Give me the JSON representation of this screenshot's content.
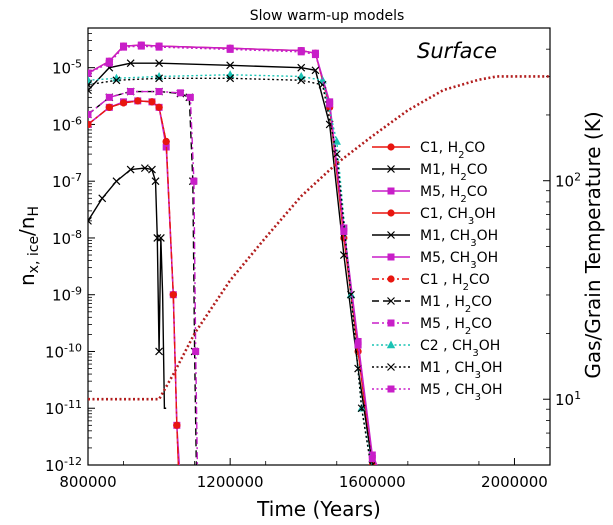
{
  "chart_data": {
    "type": "line",
    "title": "Slow warm-up models",
    "xlabel": "Time (Years)",
    "ylabel_left_base": "n",
    "ylabel_left_sub1": "x, ice",
    "ylabel_left_slash": "/n",
    "ylabel_left_sub2": "H",
    "ylabel_right": "Gas/Grain Temperature (K)",
    "annotation": "Surface",
    "xlim": [
      800000,
      2100000
    ],
    "ylim": [
      1e-12,
      5e-05
    ],
    "yscale": "log",
    "y2lim": [
      5,
      500
    ],
    "y2scale": "log",
    "x_ticks": [
      800000,
      1200000,
      1600000,
      2000000
    ],
    "x_tick_labels": [
      "800000",
      "1200000",
      "1600000",
      "2000000"
    ],
    "y_tick_labels": [
      {
        "base": "10",
        "exp": "-12",
        "value": 1e-12
      },
      {
        "base": "10",
        "exp": "-11",
        "value": 1e-11
      },
      {
        "base": "10",
        "exp": "-10",
        "value": 1e-10
      },
      {
        "base": "10",
        "exp": "-9",
        "value": 1e-09
      },
      {
        "base": "10",
        "exp": "-8",
        "value": 1e-08
      },
      {
        "base": "10",
        "exp": "-7",
        "value": 1e-07
      },
      {
        "base": "10",
        "exp": "-6",
        "value": 1e-06
      },
      {
        "base": "10",
        "exp": "-5",
        "value": 1e-05
      }
    ],
    "y2_tick_labels": [
      {
        "base": "10",
        "exp": "1",
        "value": 10
      },
      {
        "base": "10",
        "exp": "2",
        "value": 100
      }
    ],
    "legend_position": "right",
    "series": [
      {
        "legend_main": "C1, H",
        "legend_sub": "2",
        "legend_tail": "CO",
        "color": "#e8150f",
        "marker": "circle",
        "dash": "solid",
        "points": [
          [
            800000,
            1e-06
          ],
          [
            860000,
            2e-06
          ],
          [
            900000,
            2.4e-06
          ],
          [
            940000,
            2.6e-06
          ],
          [
            980000,
            2.5e-06
          ],
          [
            1000000,
            2e-06
          ],
          [
            1020000,
            5e-07
          ],
          [
            1040000,
            1e-09
          ],
          [
            1050000,
            5e-12
          ],
          [
            1055000,
            8e-13
          ]
        ]
      },
      {
        "legend_main": "M1, H",
        "legend_sub": "2",
        "legend_tail": "CO",
        "color": "#000000",
        "marker": "x",
        "dash": "solid",
        "points": [
          [
            800000,
            2e-08
          ],
          [
            840000,
            5e-08
          ],
          [
            880000,
            1e-07
          ],
          [
            920000,
            1.6e-07
          ],
          [
            960000,
            1.7e-07
          ],
          [
            980000,
            1.6e-07
          ],
          [
            990000,
            1e-07
          ],
          [
            995000,
            1e-08
          ],
          [
            1000000,
            1e-10
          ],
          [
            1005000,
            1e-08
          ],
          [
            1010000,
            1e-09
          ],
          [
            1015000,
            1e-11
          ],
          [
            1020000,
            1e-11
          ]
        ]
      },
      {
        "legend_main": "M5, H",
        "legend_sub": "2",
        "legend_tail": "CO",
        "color": "#c81ec8",
        "marker": "square",
        "dash": "solid",
        "points": [
          [
            800000,
            1e-06
          ],
          [
            860000,
            2e-06
          ],
          [
            900000,
            2.5e-06
          ],
          [
            940000,
            2.6e-06
          ],
          [
            980000,
            2.5e-06
          ],
          [
            1000000,
            2e-06
          ],
          [
            1020000,
            4e-07
          ],
          [
            1040000,
            1e-09
          ],
          [
            1050000,
            5e-12
          ],
          [
            1058000,
            8e-13
          ]
        ]
      },
      {
        "legend_main": "C1, CH",
        "legend_sub": "3",
        "legend_tail": "OH",
        "color": "#e8150f",
        "marker": "circle",
        "dash": "solid",
        "points": [
          [
            800000,
            8e-06
          ],
          [
            860000,
            1.3e-05
          ],
          [
            900000,
            2.4e-05
          ],
          [
            950000,
            2.5e-05
          ],
          [
            1000000,
            2.4e-05
          ],
          [
            1200000,
            2.2e-05
          ],
          [
            1400000,
            2e-05
          ],
          [
            1440000,
            1.8e-05
          ],
          [
            1480000,
            2e-06
          ],
          [
            1520000,
            1e-08
          ],
          [
            1560000,
            1e-10
          ],
          [
            1600000,
            1e-12
          ],
          [
            1615000,
            8e-13
          ]
        ]
      },
      {
        "legend_main": "M1, CH",
        "legend_sub": "3",
        "legend_tail": "OH",
        "color": "#000000",
        "marker": "x",
        "dash": "solid",
        "points": [
          [
            800000,
            4e-06
          ],
          [
            860000,
            1e-05
          ],
          [
            920000,
            1.2e-05
          ],
          [
            1000000,
            1.2e-05
          ],
          [
            1200000,
            1.1e-05
          ],
          [
            1400000,
            1e-05
          ],
          [
            1440000,
            9e-06
          ],
          [
            1480000,
            1e-06
          ],
          [
            1520000,
            5e-09
          ],
          [
            1560000,
            5e-11
          ],
          [
            1600000,
            1e-12
          ],
          [
            1612000,
            8e-13
          ]
        ]
      },
      {
        "legend_main": "M5, CH",
        "legend_sub": "3",
        "legend_tail": "OH",
        "color": "#c81ec8",
        "marker": "square",
        "dash": "solid",
        "points": [
          [
            800000,
            8e-06
          ],
          [
            860000,
            1.3e-05
          ],
          [
            900000,
            2.4e-05
          ],
          [
            950000,
            2.5e-05
          ],
          [
            1000000,
            2.4e-05
          ],
          [
            1200000,
            2.2e-05
          ],
          [
            1400000,
            2e-05
          ],
          [
            1440000,
            1.8e-05
          ],
          [
            1480000,
            2.5e-06
          ],
          [
            1520000,
            1.5e-08
          ],
          [
            1560000,
            1.5e-10
          ],
          [
            1600000,
            1.5e-12
          ],
          [
            1620000,
            8e-13
          ]
        ]
      },
      {
        "legend_main": "C1 , H",
        "legend_sub": "2",
        "legend_tail": "CO",
        "color": "#e8150f",
        "marker": "circle",
        "dash": "dashdot",
        "points": [
          [
            800000,
            1e-06
          ],
          [
            860000,
            2e-06
          ],
          [
            900000,
            2.4e-06
          ],
          [
            940000,
            2.6e-06
          ],
          [
            980000,
            2.5e-06
          ],
          [
            1000000,
            2e-06
          ],
          [
            1020000,
            5e-07
          ],
          [
            1040000,
            1e-09
          ],
          [
            1050000,
            5e-12
          ],
          [
            1055000,
            8e-13
          ]
        ]
      },
      {
        "legend_main": "M1 , H",
        "legend_sub": "2",
        "legend_tail": "CO",
        "color": "#000000",
        "marker": "x",
        "dash": "dashed",
        "points": [
          [
            800000,
            1.5e-06
          ],
          [
            860000,
            3e-06
          ],
          [
            920000,
            3.8e-06
          ],
          [
            1000000,
            3.8e-06
          ],
          [
            1060000,
            3.5e-06
          ],
          [
            1085000,
            3e-06
          ],
          [
            1095000,
            1e-07
          ],
          [
            1100000,
            1e-10
          ],
          [
            1105000,
            8e-13
          ]
        ]
      },
      {
        "legend_main": "M5 , H",
        "legend_sub": "2",
        "legend_tail": "CO",
        "color": "#c81ec8",
        "marker": "square",
        "dash": "dashdot",
        "points": [
          [
            800000,
            1.5e-06
          ],
          [
            860000,
            3e-06
          ],
          [
            920000,
            3.8e-06
          ],
          [
            1000000,
            3.8e-06
          ],
          [
            1060000,
            3.6e-06
          ],
          [
            1088000,
            3e-06
          ],
          [
            1098000,
            1e-07
          ],
          [
            1103000,
            1e-10
          ],
          [
            1108000,
            8e-13
          ]
        ]
      },
      {
        "legend_main": "C2 , CH",
        "legend_sub": "3",
        "legend_tail": "OH",
        "color": "#19c3b4",
        "marker": "triangle",
        "dash": "dotted",
        "points": [
          [
            800000,
            6e-06
          ],
          [
            880000,
            6.5e-06
          ],
          [
            1000000,
            7e-06
          ],
          [
            1200000,
            7.5e-06
          ],
          [
            1400000,
            7e-06
          ],
          [
            1460000,
            6e-06
          ],
          [
            1500000,
            5e-07
          ],
          [
            1540000,
            1e-09
          ],
          [
            1570000,
            1e-11
          ],
          [
            1600000,
            8e-13
          ]
        ]
      },
      {
        "legend_main": "M1 , CH",
        "legend_sub": "3",
        "legend_tail": "OH",
        "color": "#000000",
        "marker": "x",
        "dash": "dotted",
        "points": [
          [
            800000,
            5e-06
          ],
          [
            880000,
            6e-06
          ],
          [
            1000000,
            6.5e-06
          ],
          [
            1200000,
            6.5e-06
          ],
          [
            1400000,
            6e-06
          ],
          [
            1460000,
            5e-06
          ],
          [
            1500000,
            3e-07
          ],
          [
            1540000,
            1e-09
          ],
          [
            1570000,
            1e-11
          ],
          [
            1598000,
            8e-13
          ]
        ]
      },
      {
        "legend_main": "M5 , CH",
        "legend_sub": "3",
        "legend_tail": "OH",
        "color": "#c81ec8",
        "marker": "square",
        "dash": "dotted",
        "points": [
          [
            800000,
            8e-06
          ],
          [
            860000,
            1.2e-05
          ],
          [
            900000,
            2.3e-05
          ],
          [
            950000,
            2.4e-05
          ],
          [
            1000000,
            2.3e-05
          ],
          [
            1200000,
            2.1e-05
          ],
          [
            1400000,
            1.9e-05
          ],
          [
            1440000,
            1.7e-05
          ],
          [
            1480000,
            2.3e-06
          ],
          [
            1520000,
            1.3e-08
          ],
          [
            1560000,
            1.3e-10
          ],
          [
            1600000,
            1.3e-12
          ],
          [
            1618000,
            8e-13
          ]
        ]
      }
    ],
    "temperature_series": {
      "color": "#b21e1e",
      "axis": "right",
      "dash": "dotted",
      "points": [
        [
          800000,
          10
        ],
        [
          1000000,
          10
        ],
        [
          1040000,
          13
        ],
        [
          1100000,
          20
        ],
        [
          1200000,
          35
        ],
        [
          1300000,
          55
        ],
        [
          1400000,
          85
        ],
        [
          1500000,
          120
        ],
        [
          1600000,
          160
        ],
        [
          1700000,
          210
        ],
        [
          1800000,
          260
        ],
        [
          1900000,
          290
        ],
        [
          1950000,
          300
        ],
        [
          2100000,
          300
        ]
      ]
    }
  }
}
